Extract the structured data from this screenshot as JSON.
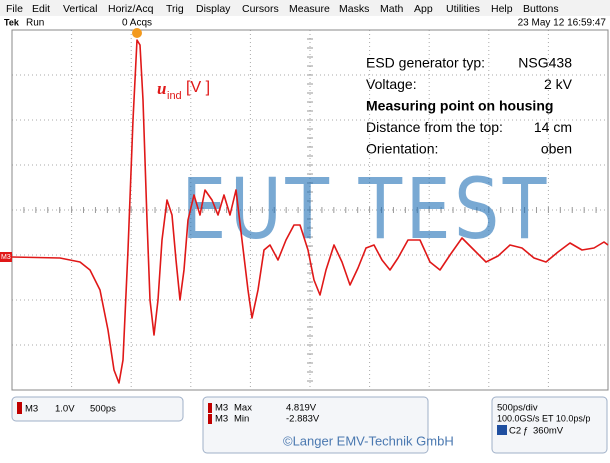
{
  "menu": {
    "items": [
      "File",
      "Edit",
      "Vertical",
      "Horiz/Acq",
      "Trig",
      "Display",
      "Cursors",
      "Measure",
      "Masks",
      "Math",
      "App",
      "Utilities",
      "Help",
      "Buttons"
    ]
  },
  "status": {
    "brand": "Tek",
    "mode": "Run",
    "acquisitions": "0 Acqs",
    "datetime": "23 May 12 16:59:47"
  },
  "screen": {
    "channel_marker": "M3",
    "annotation": {
      "symbol": "u",
      "subscript": "ind",
      "unit": "[V ]"
    },
    "info": [
      {
        "label": "ESD generator typ:",
        "value": "NSG438"
      },
      {
        "label": "Voltage:",
        "value": "2 kV"
      },
      {
        "label": "Measuring point on housing",
        "value": ""
      },
      {
        "label": "Distance from the top:",
        "value": "14 cm"
      },
      {
        "label": "Orientation:",
        "value": "oben"
      }
    ],
    "watermark": "EUT TEST"
  },
  "readouts": {
    "channel": {
      "name": "M3",
      "scale": "1.0V",
      "time": "500ps"
    },
    "measurements": [
      {
        "source": "M3",
        "label": "Max",
        "value": "4.819V"
      },
      {
        "source": "M3",
        "label": "Min",
        "value": "-2.883V"
      }
    ],
    "timebase": {
      "per_div": "500ps/div",
      "rate": "100.0GS/s ET 10.0ps/p",
      "trigger_source": "C2",
      "trigger_symbol": "ƒ",
      "trigger_level": "360mV"
    },
    "copyright": "©Langer EMV-Technik GmbH"
  }
}
